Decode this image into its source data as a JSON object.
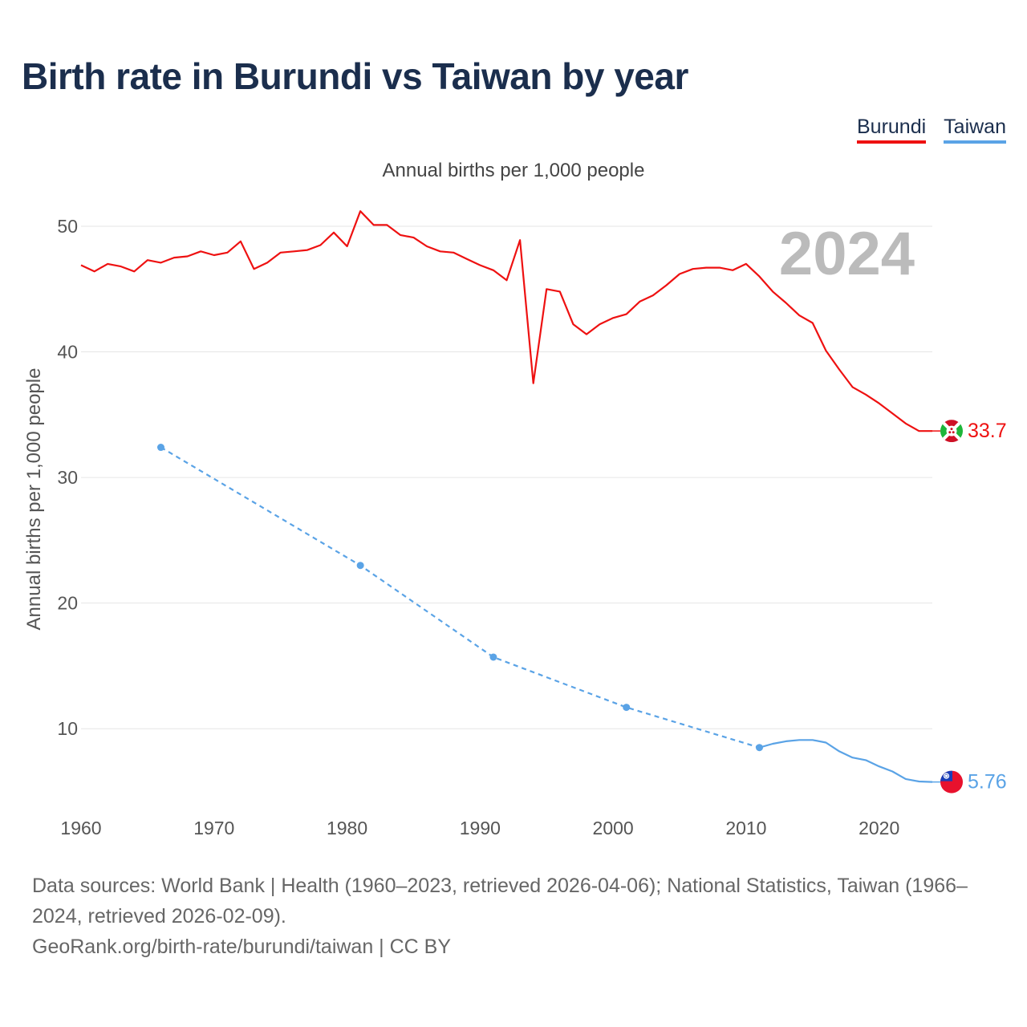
{
  "title": "Birth rate in Burundi vs Taiwan by year",
  "chart_data": {
    "type": "line",
    "subtitle": "Annual births per 1,000 people",
    "ylabel": "Annual births per 1,000 people",
    "xlabel": "",
    "year_label": "2024",
    "xlim": [
      1960,
      2024
    ],
    "ylim": [
      3.5,
      53
    ],
    "x_ticks": [
      1960,
      1970,
      1980,
      1990,
      2000,
      2010,
      2020
    ],
    "y_ticks": [
      10,
      20,
      30,
      40,
      50
    ],
    "grid": true,
    "legend_position": "top-right",
    "series": [
      {
        "name": "Burundi",
        "color": "#ee1111",
        "style": "solid",
        "end_label": "33.7",
        "flag": "burundi-flag-icon",
        "points": [
          [
            1960,
            46.9
          ],
          [
            1961,
            46.4
          ],
          [
            1962,
            47.0
          ],
          [
            1963,
            46.8
          ],
          [
            1964,
            46.4
          ],
          [
            1965,
            47.3
          ],
          [
            1966,
            47.1
          ],
          [
            1967,
            47.5
          ],
          [
            1968,
            47.6
          ],
          [
            1969,
            48.0
          ],
          [
            1970,
            47.7
          ],
          [
            1971,
            47.9
          ],
          [
            1972,
            48.8
          ],
          [
            1973,
            46.6
          ],
          [
            1974,
            47.1
          ],
          [
            1975,
            47.9
          ],
          [
            1976,
            48.0
          ],
          [
            1977,
            48.1
          ],
          [
            1978,
            48.5
          ],
          [
            1979,
            49.5
          ],
          [
            1980,
            48.4
          ],
          [
            1981,
            51.2
          ],
          [
            1982,
            50.1
          ],
          [
            1983,
            50.1
          ],
          [
            1984,
            49.3
          ],
          [
            1985,
            49.1
          ],
          [
            1986,
            48.4
          ],
          [
            1987,
            48.0
          ],
          [
            1988,
            47.9
          ],
          [
            1989,
            47.4
          ],
          [
            1990,
            46.9
          ],
          [
            1991,
            46.5
          ],
          [
            1992,
            45.7
          ],
          [
            1993,
            48.9
          ],
          [
            1994,
            37.5
          ],
          [
            1995,
            45.0
          ],
          [
            1996,
            44.8
          ],
          [
            1997,
            42.2
          ],
          [
            1998,
            41.4
          ],
          [
            1999,
            42.2
          ],
          [
            2000,
            42.7
          ],
          [
            2001,
            43.0
          ],
          [
            2002,
            44.0
          ],
          [
            2003,
            44.5
          ],
          [
            2004,
            45.3
          ],
          [
            2005,
            46.2
          ],
          [
            2006,
            46.6
          ],
          [
            2007,
            46.7
          ],
          [
            2008,
            46.7
          ],
          [
            2009,
            46.5
          ],
          [
            2010,
            47.0
          ],
          [
            2011,
            46.0
          ],
          [
            2012,
            44.8
          ],
          [
            2013,
            43.9
          ],
          [
            2014,
            42.9
          ],
          [
            2015,
            42.3
          ],
          [
            2016,
            40.1
          ],
          [
            2017,
            38.6
          ],
          [
            2018,
            37.2
          ],
          [
            2019,
            36.6
          ],
          [
            2020,
            35.9
          ],
          [
            2021,
            35.1
          ],
          [
            2022,
            34.3
          ],
          [
            2023,
            33.7
          ],
          [
            2024,
            33.7
          ]
        ]
      },
      {
        "name": "Taiwan",
        "color": "#5aa3e6",
        "style": "mixed",
        "end_label": "5.76",
        "flag": "taiwan-flag-icon",
        "dashed_points": [
          [
            1966,
            32.4
          ],
          [
            1981,
            23.0
          ],
          [
            1991,
            15.7
          ],
          [
            2001,
            11.7
          ],
          [
            2011,
            8.5
          ]
        ],
        "markers": [
          [
            1966,
            32.4
          ],
          [
            1981,
            23.0
          ],
          [
            1991,
            15.7
          ],
          [
            2001,
            11.7
          ],
          [
            2011,
            8.5
          ]
        ],
        "solid_points": [
          [
            2011,
            8.5
          ],
          [
            2012,
            8.8
          ],
          [
            2013,
            9.0
          ],
          [
            2014,
            9.1
          ],
          [
            2015,
            9.1
          ],
          [
            2016,
            8.9
          ],
          [
            2017,
            8.2
          ],
          [
            2018,
            7.7
          ],
          [
            2019,
            7.5
          ],
          [
            2020,
            7.0
          ],
          [
            2021,
            6.6
          ],
          [
            2022,
            6.0
          ],
          [
            2023,
            5.8
          ],
          [
            2024,
            5.76
          ]
        ]
      }
    ]
  },
  "footer": {
    "sources": "Data sources: World Bank | Health (1960–2023, retrieved 2026-04-06); National Statistics, Taiwan (1966–2024, retrieved 2026-02-09).",
    "credit": "GeoRank.org/birth-rate/burundi/taiwan | CC BY"
  }
}
